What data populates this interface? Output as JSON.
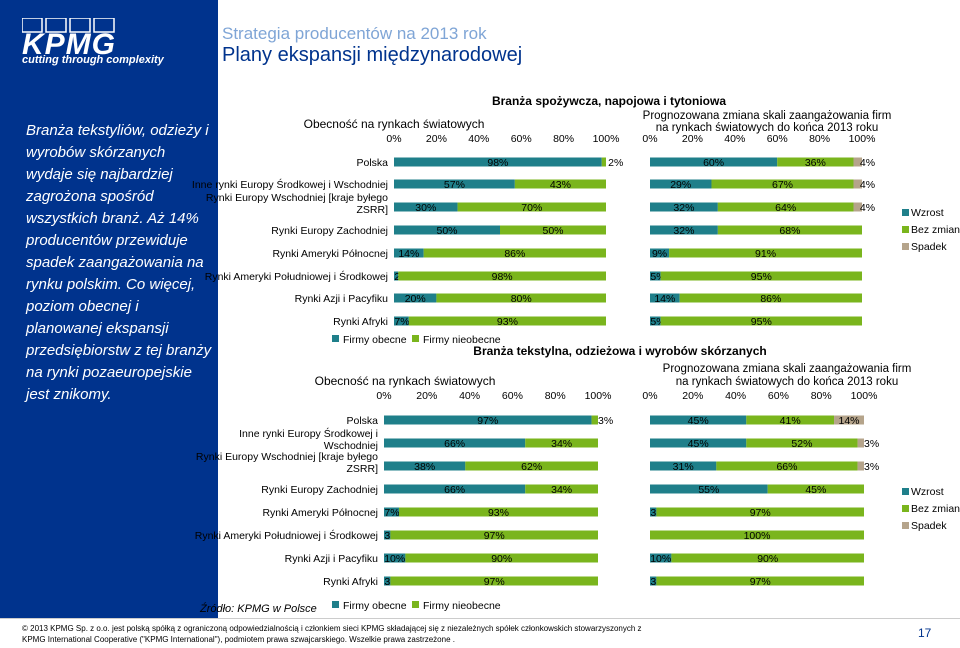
{
  "header": {
    "subtitle": "Strategia producentów na 2013 rok",
    "title": "Plany ekspansji międzynarodowej",
    "logo": "KPMG",
    "tagline": "cutting through complexity"
  },
  "sidebar": {
    "text": "Branża tekstyliów, odzieży i wyrobów skórzanych wydaje się najbardziej zagrożona spośród wszystkich branż. Aż 14% producentów przewiduje spadek zaangażowania na rynku polskim. Co więcej, poziom obecnej i planowanej ekspansji przedsiębiorstw z tej branży na rynki pozaeuropejskie jest znikomy."
  },
  "footer": {
    "copyright": "© 2013 KPMG Sp. z o.o. jest polską spółką z ograniczoną odpowiedzialnością i członkiem sieci KPMG składającej się z niezależnych spółek członkowskich stowarzyszonych z",
    "copyright2": "KPMG International Cooperative (\"KPMG International\"), podmiotem prawa szwajcarskiego. Wszelkie prawa zastrzeżone .",
    "page_number": "17",
    "source": "Źródło: KPMG w Polsce"
  },
  "colors": {
    "teal": "#1f7f8a",
    "green": "#7ab51d",
    "gray": "#b5a48b",
    "brand": "#00338d"
  },
  "chart_data": [
    {
      "type": "bar",
      "section_title": "Branża spożywcza, napojowa i tytoniowa",
      "title": "Obecność na rynkach światowych",
      "categories": [
        "Polska",
        "Inne rynki Europy Środkowej i Wschodniej",
        "Rynki Europy Wschodniej [kraje byłego ZSRR]",
        "Rynki Europy Zachodniej",
        "Rynki Ameryki Północnej",
        "Rynki Ameryki Południowej i Środkowej",
        "Rynki Azji i Pacyfiku",
        "Rynki Afryki"
      ],
      "series": [
        {
          "name": "Firmy obecne",
          "values": [
            98,
            57,
            30,
            50,
            14,
            2,
            20,
            7
          ]
        },
        {
          "name": "Firmy nieobecne",
          "values": [
            2,
            43,
            70,
            50,
            86,
            98,
            80,
            93
          ]
        }
      ],
      "labels": [
        [
          "98%",
          "2%"
        ],
        [
          "57%",
          "43%"
        ],
        [
          "30%",
          "70%"
        ],
        [
          "50%",
          "50%"
        ],
        [
          "14%",
          "86%"
        ],
        [
          "2%",
          "98%"
        ],
        [
          "20%",
          "80%"
        ],
        [
          "7%",
          "93%"
        ]
      ],
      "xticks": [
        "0%",
        "20%",
        "40%",
        "60%",
        "80%",
        "100%"
      ],
      "legend": [
        "Firmy obecne",
        "Firmy nieobecne"
      ]
    },
    {
      "type": "bar",
      "title": "Prognozowana zmiana skali zaangażowania firm na rynkach światowych do końca 2013 roku",
      "categories": [
        "Polska",
        "Inne rynki Europy Środkowej i Wschodniej",
        "Rynki Europy Wschodniej [kraje byłego ZSRR]",
        "Rynki Europy Zachodniej",
        "Rynki Ameryki Północnej",
        "Rynki Ameryki Południowej i Środkowej",
        "Rynki Azji i Pacyfiku",
        "Rynki Afryki"
      ],
      "series": [
        {
          "name": "Wzrost",
          "values": [
            60,
            29,
            32,
            32,
            9,
            5,
            14,
            5
          ]
        },
        {
          "name": "Bez zmian",
          "values": [
            36,
            67,
            64,
            68,
            91,
            95,
            86,
            95
          ]
        },
        {
          "name": "Spadek",
          "values": [
            4,
            4,
            4,
            0,
            0,
            0,
            0,
            0
          ]
        }
      ],
      "labels": [
        [
          "60%",
          "36%",
          "4%"
        ],
        [
          "29%",
          "67%",
          "4%"
        ],
        [
          "32%",
          "64%",
          "4%"
        ],
        [
          "32%",
          "68%",
          ""
        ],
        [
          "9%",
          "91%",
          ""
        ],
        [
          "5%",
          "95%",
          ""
        ],
        [
          "14%",
          "86%",
          ""
        ],
        [
          "5%",
          "95%",
          ""
        ]
      ],
      "xticks": [
        "0%",
        "20%",
        "40%",
        "60%",
        "80%",
        "100%"
      ],
      "legend": [
        "Wzrost",
        "Bez zmian",
        "Spadek"
      ]
    },
    {
      "type": "bar",
      "section_title": "Branża tekstylna, odzieżowa i wyrobów skórzanych",
      "title": "Obecność na rynkach światowych",
      "categories": [
        "Polska",
        "Inne rynki Europy Środkowej i Wschodniej",
        "Rynki Europy Wschodniej [kraje byłego ZSRR]",
        "Rynki Europy Zachodniej",
        "Rynki Ameryki Północnej",
        "Rynki Ameryki Południowej i Środkowej",
        "Rynki Azji i Pacyfiku",
        "Rynki Afryki"
      ],
      "series": [
        {
          "name": "Firmy obecne",
          "values": [
            97,
            66,
            38,
            66,
            7,
            3,
            10,
            3
          ]
        },
        {
          "name": "Firmy nieobecne",
          "values": [
            3,
            34,
            62,
            34,
            93,
            97,
            90,
            97
          ]
        }
      ],
      "labels": [
        [
          "97%",
          "3%"
        ],
        [
          "66%",
          "34%"
        ],
        [
          "38%",
          "62%"
        ],
        [
          "66%",
          "34%"
        ],
        [
          "7%",
          "93%"
        ],
        [
          "3%",
          "97%"
        ],
        [
          "10%",
          "90%"
        ],
        [
          "3%",
          "97%"
        ]
      ],
      "xticks": [
        "0%",
        "20%",
        "40%",
        "60%",
        "80%",
        "100%"
      ],
      "legend": [
        "Firmy obecne",
        "Firmy nieobecne"
      ]
    },
    {
      "type": "bar",
      "title": "Prognozowana zmiana skali zaangażowania firm na rynkach światowych do końca 2013 roku",
      "categories": [
        "Polska",
        "Inne rynki Europy Środkowej i Wschodniej",
        "Rynki Europy Wschodniej [kraje byłego ZSRR]",
        "Rynki Europy Zachodniej",
        "Rynki Ameryki Północnej",
        "Rynki Ameryki Południowej i Środkowej",
        "Rynki Azji i Pacyfiku",
        "Rynki Afryki"
      ],
      "series": [
        {
          "name": "Wzrost",
          "values": [
            45,
            45,
            31,
            55,
            3,
            0,
            10,
            3
          ]
        },
        {
          "name": "Bez zmian",
          "values": [
            41,
            52,
            66,
            45,
            97,
            100,
            90,
            97
          ]
        },
        {
          "name": "Spadek",
          "values": [
            14,
            3,
            3,
            0,
            0,
            0,
            0,
            0
          ]
        }
      ],
      "labels": [
        [
          "45%",
          "41%",
          "14%"
        ],
        [
          "45%",
          "52%",
          "3%"
        ],
        [
          "31%",
          "66%",
          "3%"
        ],
        [
          "55%",
          "45%",
          ""
        ],
        [
          "3%",
          "97%",
          ""
        ],
        [
          "",
          "100%",
          ""
        ],
        [
          "10%",
          "90%",
          ""
        ],
        [
          "3%",
          "97%",
          ""
        ]
      ],
      "xticks": [
        "0%",
        "20%",
        "40%",
        "60%",
        "80%",
        "100%"
      ],
      "legend": [
        "Wzrost",
        "Bez zmian",
        "Spadek"
      ]
    }
  ]
}
